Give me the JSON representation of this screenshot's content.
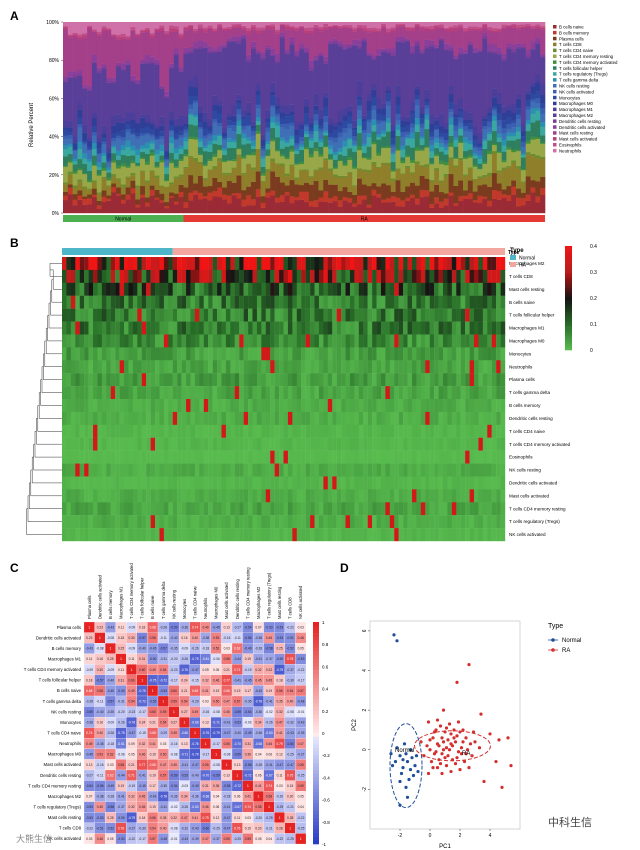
{
  "panels": {
    "A": "A",
    "B": "B",
    "C": "C",
    "D": "D"
  },
  "chart_data": [
    {
      "type": "bar",
      "panel": "A",
      "stacked": true,
      "ylabel": "Relative Percent",
      "yticks": [
        "0%",
        "20%",
        "40%",
        "60%",
        "80%",
        "100%"
      ],
      "ylim": [
        0,
        100
      ],
      "groups": [
        {
          "name": "Normal",
          "color": "#4caf50",
          "count": 25
        },
        {
          "name": "RA",
          "color": "#e53935",
          "count": 75
        }
      ],
      "cell_types": [
        "B cells naive",
        "B cells memory",
        "Plasma cells",
        "T cells CD8",
        "T cells CD4 naive",
        "T cells CD4 memory resting",
        "T cells CD4 memory activated",
        "T cells follicular helper",
        "T cells regulatory (Tregs)",
        "T cells gamma delta",
        "NK cells resting",
        "NK cells activated",
        "Monocytes",
        "Macrophages M0",
        "Macrophages M1",
        "Macrophages M2",
        "Dendritic cells resting",
        "Dendritic cells activated",
        "Mast cells resting",
        "Mast cells activated",
        "Eosinophils",
        "Neutrophils"
      ],
      "colors": [
        "#9a2a35",
        "#c0392b",
        "#7a3b1e",
        "#8f7f2a",
        "#6d8b2f",
        "#98a848",
        "#3f8f3f",
        "#2f7f5f",
        "#3aa8a0",
        "#2a8fb0",
        "#3f6fb5",
        "#3b5fb0",
        "#2e4aa0",
        "#2f3f98",
        "#4a3f9a",
        "#5a3f98",
        "#7a3f98",
        "#8a3f9a",
        "#a43f8a",
        "#b83f7a",
        "#c0508a",
        "#d070a8"
      ],
      "mean_percent": {
        "Normal": [
          6,
          2,
          3,
          5,
          1,
          7,
          1,
          3,
          3,
          2,
          4,
          1,
          2,
          3,
          3,
          26,
          1,
          2,
          20,
          1,
          1,
          4
        ],
        "RA": [
          6,
          3,
          6,
          7,
          1,
          6,
          1,
          5,
          3,
          2,
          4,
          2,
          3,
          3,
          4,
          30,
          1,
          2,
          8,
          1,
          1,
          2
        ]
      }
    },
    {
      "type": "heatmap",
      "panel": "B",
      "legend_title": "Type",
      "legend": [
        {
          "name": "Normal",
          "color": "#4db6c8"
        },
        {
          "name": "RA",
          "color": "#f4a7a0"
        }
      ],
      "scale_ticks": [
        "0.4",
        "0.3",
        "0.2",
        "0.1",
        "0"
      ],
      "rows": [
        "Macrophages M2",
        "T cells CD8",
        "Mast cells resting",
        "B cells naive",
        "T cells follicular helper",
        "Macrophages M1",
        "Macrophages M0",
        "Monocytes",
        "Neutrophils",
        "Plasma cells",
        "T cells gamma delta",
        "B cells memory",
        "Dendritic cells resting",
        "T cells CD4 naive",
        "T cells CD4 memory activated",
        "Eosinophils",
        "NK cells resting",
        "Dendritic cells activated",
        "Mast cells activated",
        "T cells CD4 memory resting",
        "T cells regulatory (Tregs)",
        "NK cells activated"
      ],
      "groups": [
        {
          "name": "Normal",
          "count": 25
        },
        {
          "name": "RA",
          "count": 75
        }
      ]
    },
    {
      "type": "heatmap",
      "panel": "C",
      "subtype": "correlation",
      "scale_ticks": [
        "1",
        "0.8",
        "0.6",
        "0.4",
        "0.2",
        "0",
        "-0.2",
        "-0.4",
        "-0.6",
        "-0.8",
        "-1"
      ],
      "labels": [
        "Plasma cells",
        "Dendritic cells activated",
        "B cells memory",
        "Macrophages M1",
        "T cells CD4 memory activated",
        "T cells follicular helper",
        "B cells naive",
        "T cells gamma delta",
        "NK cells resting",
        "Monocytes",
        "T cells CD4 naive",
        "Neutrophils",
        "Macrophages M0",
        "Mast cells activated",
        "Dendritic cells resting",
        "T cells CD4 memory resting",
        "Macrophages M2",
        "T cells regulatory (Tregs)",
        "Mast cells resting",
        "T cells CD8",
        "NK cells activated"
      ]
    },
    {
      "type": "scatter",
      "panel": "D",
      "xlabel": "PC1",
      "ylabel": "PC2",
      "xlim": [
        -4,
        6
      ],
      "ylim": [
        -4,
        6.5
      ],
      "xticks": [
        -2,
        0,
        2,
        4
      ],
      "yticks": [
        -2,
        0,
        2,
        4,
        6
      ],
      "legend_title": "Type",
      "series": [
        {
          "name": "Normal",
          "color": "#1f4e9a",
          "points": [
            [
              -2.4,
              5.8
            ],
            [
              -2.2,
              5.5
            ],
            [
              -2.3,
              -0.6
            ],
            [
              -2.0,
              -0.3
            ],
            [
              -1.8,
              -0.9
            ],
            [
              -1.6,
              -0.2
            ],
            [
              -2.2,
              0.1
            ],
            [
              -1.9,
              -1.2
            ],
            [
              -1.5,
              -0.6
            ],
            [
              -1.3,
              -1.0
            ],
            [
              -1.7,
              0.3
            ],
            [
              -1.2,
              -0.4
            ],
            [
              -2.5,
              -0.8
            ],
            [
              -1.4,
              -1.5
            ],
            [
              -1.0,
              -0.8
            ],
            [
              -1.1,
              -1.3
            ],
            [
              -2.0,
              -1.6
            ],
            [
              -1.6,
              -1.9
            ],
            [
              -0.9,
              -0.3
            ],
            [
              -1.8,
              -0.5
            ],
            [
              -2.6,
              -0.2
            ],
            [
              -1.3,
              0.0
            ],
            [
              -0.8,
              -1.1
            ],
            [
              -1.5,
              -2.4
            ],
            [
              -2.0,
              -2.8
            ]
          ]
        },
        {
          "name": "RA",
          "color": "#d32f2f",
          "points": [
            [
              0.5,
              0.3
            ],
            [
              0.8,
              0.6
            ],
            [
              1.1,
              0.1
            ],
            [
              1.4,
              0.8
            ],
            [
              1.7,
              0.4
            ],
            [
              2.0,
              0.9
            ],
            [
              0.3,
              -0.2
            ],
            [
              0.6,
              -0.5
            ],
            [
              0.9,
              0.0
            ],
            [
              1.2,
              -0.3
            ],
            [
              1.5,
              0.2
            ],
            [
              1.8,
              -0.4
            ],
            [
              2.1,
              0.1
            ],
            [
              2.4,
              0.6
            ],
            [
              2.7,
              0.3
            ],
            [
              0.2,
              0.6
            ],
            [
              0.4,
              1.0
            ],
            [
              0.7,
              1.2
            ],
            [
              1.0,
              0.9
            ],
            [
              1.3,
              1.3
            ],
            [
              1.6,
              1.0
            ],
            [
              1.9,
              1.4
            ],
            [
              2.2,
              1.0
            ],
            [
              2.5,
              0.0
            ],
            [
              2.8,
              -0.3
            ],
            [
              0.1,
              -0.6
            ],
            [
              0.5,
              -0.9
            ],
            [
              0.8,
              -1.2
            ],
            [
              1.1,
              -0.8
            ],
            [
              1.4,
              -1.1
            ],
            [
              1.7,
              -0.7
            ],
            [
              2.0,
              -1.0
            ],
            [
              2.3,
              -0.6
            ],
            [
              2.6,
              -0.9
            ],
            [
              3.0,
              0.4
            ],
            [
              -0.2,
              0.2
            ],
            [
              -0.4,
              -0.3
            ],
            [
              0.0,
              0.0
            ],
            [
              1.2,
              0.5
            ],
            [
              1.5,
              -0.5
            ],
            [
              0.9,
              0.4
            ],
            [
              0.6,
              0.2
            ],
            [
              1.8,
              0.7
            ],
            [
              2.1,
              -0.2
            ],
            [
              0.3,
              0.9
            ],
            [
              1.0,
              -0.4
            ],
            [
              1.3,
              0.0
            ],
            [
              1.6,
              0.6
            ],
            [
              0.4,
              -0.1
            ],
            [
              0.7,
              -0.7
            ],
            [
              2.4,
              -0.2
            ],
            [
              0.2,
              -0.9
            ],
            [
              1.1,
              1.1
            ],
            [
              2.9,
              0.9
            ],
            [
              -0.6,
              0.4
            ],
            [
              -0.1,
              -1.2
            ],
            [
              0.5,
              1.5
            ],
            [
              3.3,
              0.1
            ],
            [
              4.0,
              0.8
            ],
            [
              4.6,
              0.5
            ],
            [
              5.2,
              0.6
            ],
            [
              4.4,
              -0.6
            ],
            [
              3.6,
              -1.6
            ],
            [
              4.8,
              -1.9
            ],
            [
              5.4,
              -0.8
            ],
            [
              2.6,
              4.3
            ],
            [
              1.8,
              3.4
            ],
            [
              0.9,
              2.0
            ],
            [
              -0.1,
              1.4
            ],
            [
              3.4,
              1.8
            ],
            [
              0.0,
              0.5
            ],
            [
              1.4,
              0.3
            ],
            [
              0.8,
              -0.2
            ],
            [
              2.2,
              0.4
            ],
            [
              1.9,
              -0.1
            ]
          ]
        }
      ]
    }
  ],
  "watermark": {
    "left": "大熊生信",
    "right": "中科生信"
  }
}
